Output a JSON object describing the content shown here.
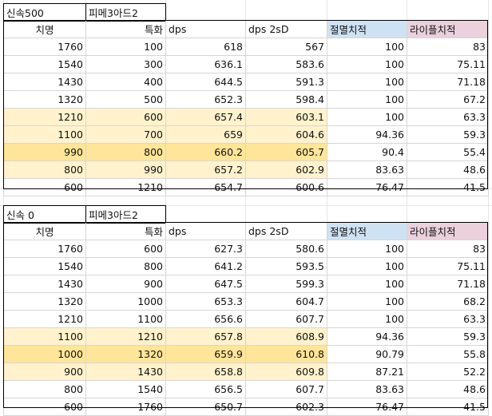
{
  "table1": {
    "title_a": "신속500",
    "title_b": "피메3아드2",
    "headers": [
      "치명",
      "특화",
      "dps",
      "dps 2sD",
      "절멸치적",
      "라이플치적"
    ],
    "rows": [
      [
        "1760",
        "100",
        "618",
        "567",
        "100",
        "83"
      ],
      [
        "1540",
        "300",
        "636.1",
        "583.6",
        "100",
        "75.11"
      ],
      [
        "1430",
        "400",
        "644.5",
        "591.3",
        "100",
        "71.18"
      ],
      [
        "1320",
        "500",
        "652.3",
        "598.4",
        "100",
        "67.2"
      ],
      [
        "1210",
        "600",
        "657.4",
        "603.1",
        "100",
        "63.3"
      ],
      [
        "1100",
        "700",
        "659",
        "604.6",
        "94.36",
        "59.3"
      ],
      [
        "990",
        "800",
        "660.2",
        "605.7",
        "90.4",
        "55.4"
      ],
      [
        "800",
        "990",
        "657.2",
        "602.9",
        "83.63",
        "48.6"
      ],
      [
        "600",
        "1210",
        "654.7",
        "600.6",
        "76.47",
        "41.5"
      ]
    ],
    "row_highlight": [
      "none",
      "none",
      "none",
      "none",
      "light",
      "light",
      "dark",
      "light",
      "none"
    ]
  },
  "table2": {
    "title_a": "신속 0",
    "title_b": "피메3아드2",
    "headers": [
      "치명",
      "특화",
      "dps",
      "dps 2sD",
      "절멸치적",
      "라이플치적"
    ],
    "rows": [
      [
        "1760",
        "600",
        "627.3",
        "580.6",
        "100",
        "83"
      ],
      [
        "1540",
        "800",
        "641.2",
        "593.5",
        "100",
        "75.11"
      ],
      [
        "1430",
        "900",
        "647.5",
        "599.3",
        "100",
        "71.18"
      ],
      [
        "1320",
        "1000",
        "653.3",
        "604.7",
        "100",
        "68.2"
      ],
      [
        "1210",
        "1100",
        "656.6",
        "607.7",
        "100",
        "63.3"
      ],
      [
        "1100",
        "1210",
        "657.8",
        "608.9",
        "94.36",
        "59.3"
      ],
      [
        "1000",
        "1320",
        "659.9",
        "610.8",
        "90.79",
        "55.8"
      ],
      [
        "900",
        "1430",
        "658.8",
        "609.8",
        "87.21",
        "52.2"
      ],
      [
        "800",
        "1540",
        "656.5",
        "607.7",
        "83.63",
        "48.6"
      ],
      [
        "600",
        "1760",
        "650.7",
        "602.3",
        "76.47",
        "41.5"
      ]
    ],
    "row_highlight": [
      "none",
      "none",
      "none",
      "none",
      "none",
      "light",
      "dark",
      "light",
      "none",
      "none"
    ]
  },
  "colors": {
    "header_blue": "#cfe2f3",
    "header_pink": "#ead1dc",
    "highlight_light": "#fff2cc",
    "highlight_dark": "#ffe599"
  }
}
